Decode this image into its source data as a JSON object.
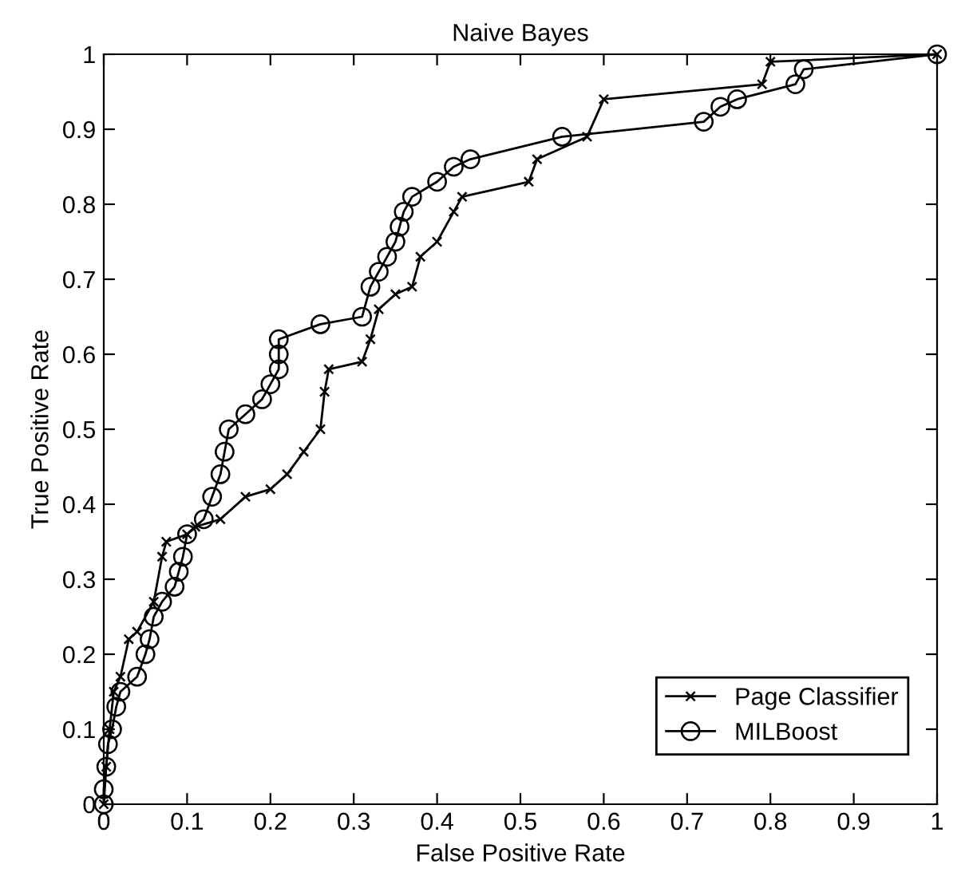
{
  "chart_data": {
    "type": "line",
    "title": "Naive Bayes",
    "xlabel": "False Positive Rate",
    "ylabel": "True Positive Rate",
    "xlim": [
      0,
      1
    ],
    "ylim": [
      0,
      1
    ],
    "xticks": [
      0,
      0.1,
      0.2,
      0.3,
      0.4,
      0.5,
      0.6,
      0.7,
      0.8,
      0.9,
      1
    ],
    "yticks": [
      0,
      0.1,
      0.2,
      0.3,
      0.4,
      0.5,
      0.6,
      0.7,
      0.8,
      0.9,
      1
    ],
    "grid": false,
    "legend": "bottom right",
    "line_style": "solid",
    "series": [
      {
        "name": "Page Classifier",
        "color": "#000000",
        "marker": "cross",
        "x": [
          0,
          0.003,
          0.007,
          0.012,
          0.02,
          0.03,
          0.04,
          0.06,
          0.07,
          0.075,
          0.1,
          0.11,
          0.14,
          0.17,
          0.2,
          0.22,
          0.24,
          0.26,
          0.265,
          0.27,
          0.31,
          0.32,
          0.33,
          0.35,
          0.37,
          0.38,
          0.4,
          0.42,
          0.43,
          0.51,
          0.52,
          0.58,
          0.6,
          0.79,
          0.8,
          1
        ],
        "values": [
          0,
          0.05,
          0.1,
          0.15,
          0.17,
          0.22,
          0.23,
          0.27,
          0.33,
          0.35,
          0.36,
          0.37,
          0.38,
          0.41,
          0.42,
          0.44,
          0.47,
          0.5,
          0.55,
          0.58,
          0.59,
          0.62,
          0.66,
          0.68,
          0.69,
          0.73,
          0.75,
          0.79,
          0.81,
          0.83,
          0.86,
          0.89,
          0.94,
          0.96,
          0.99,
          1
        ]
      },
      {
        "name": "MILBoost",
        "color": "#000000",
        "marker": "circle",
        "x": [
          0,
          0,
          0.003,
          0.005,
          0.01,
          0.015,
          0.02,
          0.04,
          0.05,
          0.055,
          0.06,
          0.07,
          0.085,
          0.09,
          0.095,
          0.1,
          0.12,
          0.13,
          0.14,
          0.145,
          0.15,
          0.17,
          0.19,
          0.2,
          0.21,
          0.21,
          0.21,
          0.26,
          0.31,
          0.32,
          0.33,
          0.34,
          0.35,
          0.355,
          0.36,
          0.37,
          0.4,
          0.42,
          0.44,
          0.55,
          0.72,
          0.74,
          0.76,
          0.83,
          0.84,
          1
        ],
        "values": [
          0,
          0.02,
          0.05,
          0.08,
          0.1,
          0.13,
          0.15,
          0.17,
          0.2,
          0.22,
          0.25,
          0.27,
          0.29,
          0.31,
          0.33,
          0.36,
          0.38,
          0.41,
          0.44,
          0.47,
          0.5,
          0.52,
          0.54,
          0.56,
          0.58,
          0.6,
          0.62,
          0.64,
          0.65,
          0.69,
          0.71,
          0.73,
          0.75,
          0.77,
          0.79,
          0.81,
          0.83,
          0.85,
          0.86,
          0.89,
          0.91,
          0.93,
          0.94,
          0.96,
          0.98,
          1
        ]
      }
    ]
  }
}
